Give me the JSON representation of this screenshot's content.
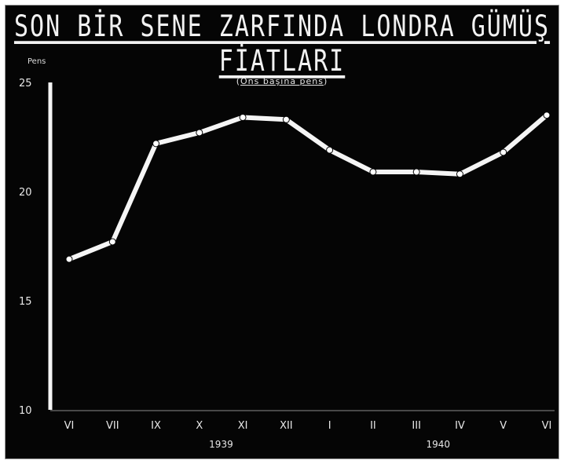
{
  "chart_data": {
    "type": "line",
    "title": "SON BİR SENE ZARFINDA LONDRA GÜMÜŞ FİATLARI",
    "subtitle": "Ons başına pens",
    "ylabel": "Pens",
    "xlabel": "",
    "ylim": [
      10,
      25
    ],
    "yticks": [
      "25",
      "20",
      "15",
      "10"
    ],
    "grid": false,
    "categories": [
      "VI",
      "VII",
      "IX",
      "X",
      "XI",
      "XII",
      "I",
      "II",
      "III",
      "IV",
      "V",
      "VI"
    ],
    "values": [
      16.9,
      17.7,
      22.2,
      22.7,
      23.4,
      23.3,
      21.9,
      20.9,
      20.9,
      20.8,
      21.8,
      23.5
    ],
    "year_labels": [
      {
        "label": "1939",
        "category_index": 3.5
      },
      {
        "label": "1940",
        "category_index": 8.5
      }
    ],
    "colors": {
      "background": "#050505",
      "line": "#f5f5f5",
      "text": "#e8e8e8"
    }
  }
}
